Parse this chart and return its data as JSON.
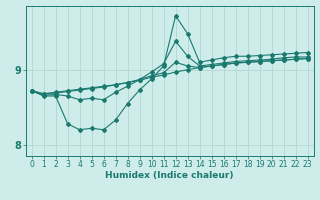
{
  "xlabel": "Humidex (Indice chaleur)",
  "bg_color": "#ceecea",
  "grid_color": "#b8d8d6",
  "line_color": "#1a7a70",
  "x_values": [
    0,
    1,
    2,
    3,
    4,
    5,
    6,
    7,
    8,
    9,
    10,
    11,
    12,
    13,
    14,
    15,
    16,
    17,
    18,
    19,
    20,
    21,
    22,
    23
  ],
  "line1": [
    8.72,
    8.68,
    8.7,
    8.72,
    8.74,
    8.76,
    8.78,
    8.8,
    8.83,
    8.86,
    8.9,
    8.93,
    8.97,
    9.0,
    9.03,
    9.05,
    9.07,
    9.09,
    9.1,
    9.11,
    9.12,
    9.13,
    9.14,
    9.15
  ],
  "line2": [
    8.72,
    8.68,
    8.69,
    8.71,
    8.73,
    8.75,
    8.77,
    8.8,
    8.83,
    8.87,
    8.92,
    8.96,
    9.1,
    9.05,
    9.03,
    9.05,
    9.07,
    9.09,
    9.1,
    9.11,
    9.12,
    9.13,
    9.14,
    9.15
  ],
  "line3": [
    8.72,
    8.66,
    8.67,
    8.65,
    8.6,
    8.62,
    8.6,
    8.7,
    8.78,
    8.87,
    8.97,
    9.08,
    9.38,
    9.18,
    9.05,
    9.07,
    9.09,
    9.11,
    9.12,
    9.13,
    9.14,
    9.16,
    9.17,
    9.17
  ],
  "line4": [
    8.72,
    8.65,
    8.65,
    8.28,
    8.2,
    8.22,
    8.2,
    8.33,
    8.55,
    8.73,
    8.88,
    9.05,
    9.72,
    9.48,
    9.1,
    9.13,
    9.16,
    9.18,
    9.18,
    9.19,
    9.2,
    9.21,
    9.22,
    9.23
  ],
  "ylim": [
    7.85,
    9.85
  ],
  "yticks": [
    8,
    9
  ],
  "xticks": [
    0,
    1,
    2,
    3,
    4,
    5,
    6,
    7,
    8,
    9,
    10,
    11,
    12,
    13,
    14,
    15,
    16,
    17,
    18,
    19,
    20,
    21,
    22,
    23
  ],
  "tick_fontsize": 5.5,
  "label_fontsize": 6.5
}
